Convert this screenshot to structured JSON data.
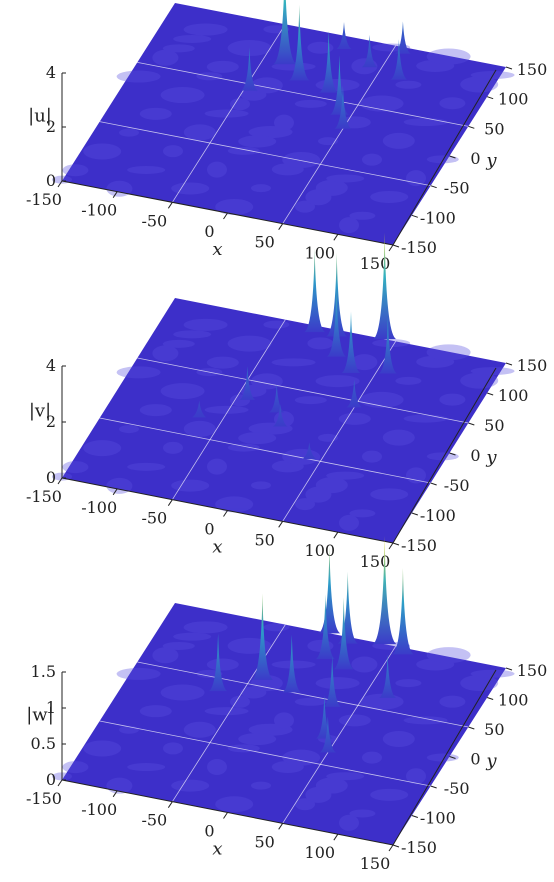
{
  "chart_data": [
    {
      "type": "surface",
      "zlabel": "|u|",
      "xlabel": "x",
      "ylabel": "y",
      "xlim": [
        -150,
        150
      ],
      "ylim": [
        -150,
        150
      ],
      "zlim": [
        0,
        4
      ],
      "xticks": [
        "-150",
        "-100",
        "-50",
        "0",
        "50",
        "100",
        "150"
      ],
      "yticks": [
        "150",
        "100",
        "50",
        "0",
        "-50",
        "-100",
        "-150"
      ],
      "zticks": [
        "0",
        "2",
        "4"
      ],
      "peaks": [
        {
          "x": -30,
          "y": 90,
          "z": 3.8
        },
        {
          "x": -10,
          "y": 70,
          "z": 2.8
        },
        {
          "x": 20,
          "y": 60,
          "z": 2.3
        },
        {
          "x": 40,
          "y": 30,
          "z": 2.2
        },
        {
          "x": -45,
          "y": 40,
          "z": 1.6
        },
        {
          "x": 50,
          "y": 10,
          "z": 1.6
        },
        {
          "x": 70,
          "y": 100,
          "z": 1.5
        },
        {
          "x": 40,
          "y": 110,
          "z": 1.2
        },
        {
          "x": 10,
          "y": 130,
          "z": 1.0
        },
        {
          "x": 60,
          "y": 140,
          "z": 1.2
        }
      ]
    },
    {
      "type": "surface",
      "zlabel": "|v|",
      "xlabel": "x",
      "ylabel": "y",
      "xlim": [
        -150,
        150
      ],
      "ylim": [
        -150,
        150
      ],
      "zlim": [
        0,
        4
      ],
      "xticks": [
        "-150",
        "-100",
        "-50",
        "0",
        "50",
        "100",
        "150"
      ],
      "yticks": [
        "150",
        "100",
        "50",
        "0",
        "-50",
        "-100",
        "-150"
      ],
      "zticks": [
        "0",
        "2",
        "4"
      ],
      "peaks": [
        {
          "x": 40,
          "y": 150,
          "z": 3.8
        },
        {
          "x": 0,
          "y": 140,
          "z": 3.0
        },
        {
          "x": -20,
          "y": 140,
          "z": 3.0
        },
        {
          "x": 10,
          "y": 110,
          "z": 2.4
        },
        {
          "x": 30,
          "y": 90,
          "z": 2.2
        },
        {
          "x": 60,
          "y": 100,
          "z": 2.0
        },
        {
          "x": 50,
          "y": 40,
          "z": 1.0
        },
        {
          "x": -40,
          "y": 20,
          "z": 1.2
        },
        {
          "x": -10,
          "y": 10,
          "z": 1.0
        },
        {
          "x": 0,
          "y": -10,
          "z": 0.8
        },
        {
          "x": -70,
          "y": -20,
          "z": 0.6
        },
        {
          "x": 40,
          "y": -50,
          "z": 0.6
        }
      ]
    },
    {
      "type": "surface",
      "zlabel": "|w|",
      "xlabel": "x",
      "ylabel": "y",
      "xlim": [
        -150,
        150
      ],
      "ylim": [
        -150,
        150
      ],
      "zlim": [
        0,
        1.5
      ],
      "xticks": [
        "-150",
        "-100",
        "-50",
        "0",
        "50",
        "100",
        "150"
      ],
      "yticks": [
        "150",
        "100",
        "50",
        "0",
        "-50",
        "-100",
        "-150"
      ],
      "zticks": [
        "0",
        "0.5",
        "1",
        "1.5"
      ],
      "peaks": [
        {
          "x": 40,
          "y": 150,
          "z": 1.5
        },
        {
          "x": -10,
          "y": 150,
          "z": 1.2
        },
        {
          "x": 10,
          "y": 140,
          "z": 1.0
        },
        {
          "x": 60,
          "y": 140,
          "z": 1.2
        },
        {
          "x": 0,
          "y": 110,
          "z": 0.9
        },
        {
          "x": 20,
          "y": 100,
          "z": 1.0
        },
        {
          "x": -40,
          "y": 60,
          "z": 1.2
        },
        {
          "x": -10,
          "y": 50,
          "z": 0.8
        },
        {
          "x": 30,
          "y": 40,
          "z": 0.7
        },
        {
          "x": 70,
          "y": 70,
          "z": 0.6
        },
        {
          "x": -70,
          "y": 30,
          "z": 0.8
        },
        {
          "x": 40,
          "y": -10,
          "z": 0.6
        },
        {
          "x": 50,
          "y": -30,
          "z": 0.5
        }
      ]
    }
  ],
  "colors": {
    "surface_low": "#3d2fc9",
    "surface_mid": "#2bb0c8",
    "surface_high": "#f5d81f",
    "grid": "#ffffff",
    "axis": "#222222"
  }
}
